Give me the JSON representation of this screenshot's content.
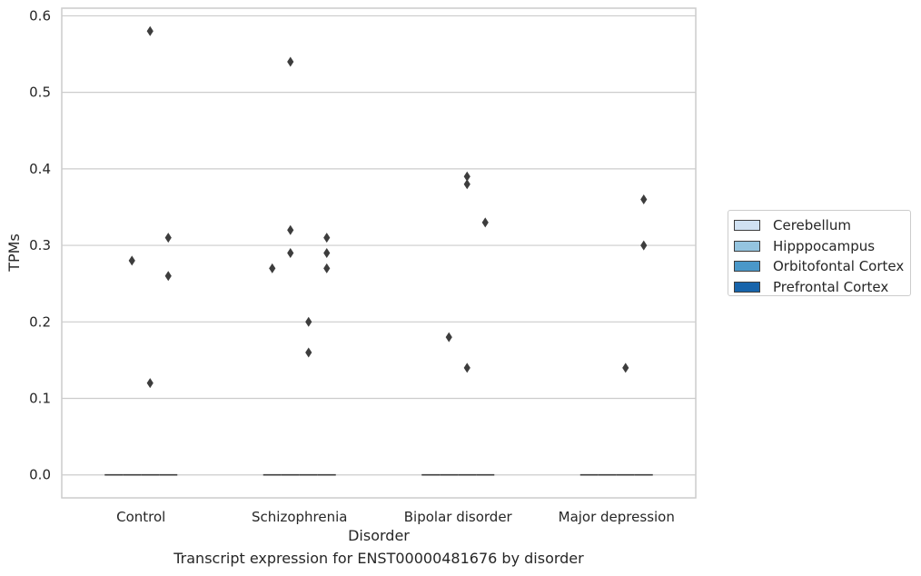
{
  "chart_data": {
    "type": "boxplot",
    "caption": "Transcript expression for ENST00000481676 by disorder",
    "xlabel": "Disorder",
    "ylabel": "TPMs",
    "ylim": [
      -0.03,
      0.61
    ],
    "yticks": [
      0.0,
      0.1,
      0.2,
      0.3,
      0.4,
      0.5,
      0.6
    ],
    "ytick_labels": [
      "0.0",
      "0.1",
      "0.2",
      "0.3",
      "0.4",
      "0.5",
      "0.6"
    ],
    "grid": "horizontal",
    "legend_position": "right",
    "categories": [
      "Control",
      "Schizophrenia",
      "Bipolar disorder",
      "Major depression"
    ],
    "hue_levels": [
      {
        "name": "Cerebellum",
        "color": "#d0e1f2"
      },
      {
        "name": "Hipppocampus",
        "color": "#94c4df"
      },
      {
        "name": "Orbitofontal Cortex",
        "color": "#4a98c9"
      },
      {
        "name": "Prefrontal Cortex",
        "color": "#1764ab"
      }
    ],
    "median_value": 0.0,
    "outliers": [
      {
        "category": "Control",
        "hue": "Hipppocampus",
        "values": [
          0.28
        ]
      },
      {
        "category": "Control",
        "hue": "Orbitofontal Cortex",
        "values": [
          0.58,
          0.12
        ]
      },
      {
        "category": "Control",
        "hue": "Prefrontal Cortex",
        "values": [
          0.31,
          0.26
        ]
      },
      {
        "category": "Schizophrenia",
        "hue": "Cerebellum",
        "values": [
          0.27
        ]
      },
      {
        "category": "Schizophrenia",
        "hue": "Hipppocampus",
        "values": [
          0.54,
          0.32,
          0.29
        ]
      },
      {
        "category": "Schizophrenia",
        "hue": "Orbitofontal Cortex",
        "values": [
          0.2,
          0.16
        ]
      },
      {
        "category": "Schizophrenia",
        "hue": "Prefrontal Cortex",
        "values": [
          0.31,
          0.29,
          0.27
        ]
      },
      {
        "category": "Bipolar disorder",
        "hue": "Hipppocampus",
        "values": [
          0.18
        ]
      },
      {
        "category": "Bipolar disorder",
        "hue": "Orbitofontal Cortex",
        "values": [
          0.39,
          0.38,
          0.14
        ]
      },
      {
        "category": "Bipolar disorder",
        "hue": "Prefrontal Cortex",
        "values": [
          0.33
        ]
      },
      {
        "category": "Major depression",
        "hue": "Orbitofontal Cortex",
        "values": [
          0.14
        ]
      },
      {
        "category": "Major depression",
        "hue": "Prefrontal Cortex",
        "values": [
          0.36,
          0.3
        ]
      }
    ]
  }
}
